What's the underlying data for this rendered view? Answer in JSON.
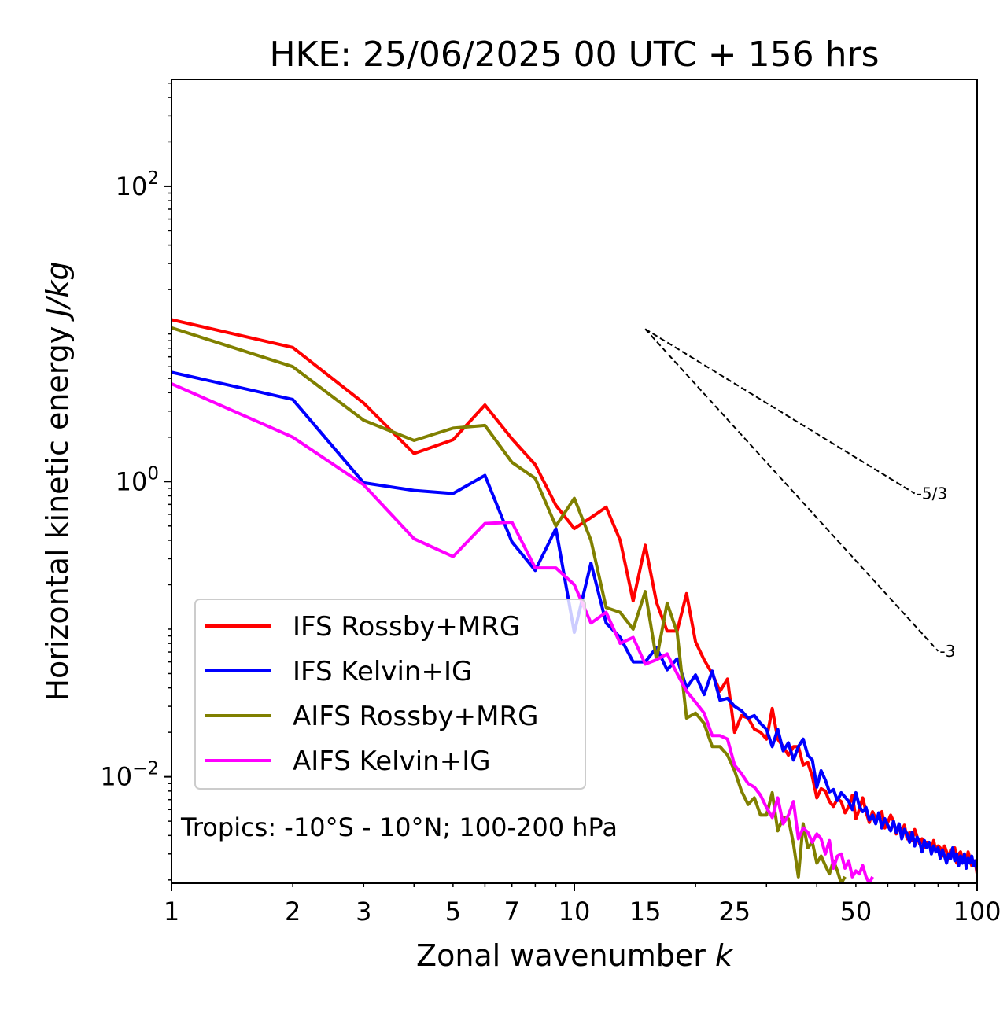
{
  "chart_data": {
    "type": "line",
    "title": "HKE: 25/06/2025 00 UTC + 156 hrs",
    "xlabel": "Zonal wavenumber",
    "xlabel_italic": "k",
    "ylabel": "Horizontal kinetic energy",
    "ylabel_italic": "J/kg",
    "xscale": "log",
    "yscale": "log",
    "xlim": [
      1,
      100
    ],
    "ylim": [
      0.0019,
      530
    ],
    "x_ticks": [
      {
        "value": 1,
        "label": "1"
      },
      {
        "value": 2,
        "label": "2"
      },
      {
        "value": 3,
        "label": "3"
      },
      {
        "value": 5,
        "label": "5"
      },
      {
        "value": 7,
        "label": "7"
      },
      {
        "value": 10,
        "label": "10"
      },
      {
        "value": 15,
        "label": "15"
      },
      {
        "value": 25,
        "label": "25"
      },
      {
        "value": 50,
        "label": "50"
      },
      {
        "value": 100,
        "label": "100"
      }
    ],
    "y_ticks": [
      {
        "value": 100,
        "base": "10",
        "exp": "2"
      },
      {
        "value": 1,
        "base": "10",
        "exp": "0"
      },
      {
        "value": 0.01,
        "base": "10",
        "exp": "−2"
      }
    ],
    "grid": false,
    "legend_position": "lower-left",
    "annotation": "Tropics: -10°S - 10°N; 100-200 hPa",
    "reference_lines": [
      {
        "label": "-5/3",
        "x": [
          15,
          70
        ],
        "y": [
          10.8,
          0.83
        ]
      },
      {
        "label": "-3",
        "x": [
          15,
          80
        ],
        "y": [
          10.8,
          0.071
        ]
      }
    ],
    "series": [
      {
        "name": "IFS Rossby+MRG",
        "color": "#ff0000",
        "points": [
          [
            1,
            12.5
          ],
          [
            2,
            8.1
          ],
          [
            3,
            3.4
          ],
          [
            4,
            1.55
          ],
          [
            5,
            1.92
          ],
          [
            6,
            3.3
          ],
          [
            7,
            1.95
          ],
          [
            8,
            1.3
          ],
          [
            9,
            0.69
          ],
          [
            10,
            0.48
          ],
          [
            11,
            0.57
          ],
          [
            12,
            0.67
          ],
          [
            13,
            0.4
          ],
          [
            14,
            0.155
          ],
          [
            15,
            0.37
          ],
          [
            16,
            0.152
          ],
          [
            17,
            0.097
          ],
          [
            18,
            0.097
          ],
          [
            19,
            0.174
          ],
          [
            20,
            0.082
          ],
          [
            21,
            0.062
          ],
          [
            22,
            0.05
          ],
          [
            23,
            0.038
          ],
          [
            24,
            0.046
          ],
          [
            25,
            0.02
          ],
          [
            26,
            0.026
          ],
          [
            27,
            0.025
          ],
          [
            28,
            0.021
          ],
          [
            29,
            0.02
          ],
          [
            30,
            0.018
          ],
          [
            31,
            0.029
          ],
          [
            32,
            0.018
          ],
          [
            33,
            0.016
          ],
          [
            34,
            0.014
          ],
          [
            35,
            0.016
          ],
          [
            36,
            0.016
          ],
          [
            37,
            0.012
          ],
          [
            38,
            0.0125
          ],
          [
            39,
            0.01
          ],
          [
            40,
            0.0072
          ],
          [
            41,
            0.0083
          ],
          [
            42,
            0.008
          ],
          [
            43,
            0.0068
          ],
          [
            44,
            0.0063
          ],
          [
            45,
            0.0071
          ],
          [
            46,
            0.0068
          ],
          [
            47,
            0.0057
          ],
          [
            48,
            0.0063
          ],
          [
            49,
            0.0075
          ],
          [
            50,
            0.0052
          ],
          [
            51,
            0.006
          ],
          [
            52,
            0.0072
          ],
          [
            53,
            0.0058
          ],
          [
            54,
            0.0049
          ],
          [
            55,
            0.0058
          ],
          [
            56,
            0.0052
          ],
          [
            57,
            0.0055
          ],
          [
            58,
            0.0058
          ],
          [
            59,
            0.0045
          ],
          [
            60,
            0.0049
          ],
          [
            61,
            0.0055
          ],
          [
            62,
            0.005
          ],
          [
            63,
            0.0041
          ],
          [
            64,
            0.0046
          ],
          [
            65,
            0.0043
          ],
          [
            66,
            0.0047
          ],
          [
            67,
            0.0038
          ],
          [
            68,
            0.0042
          ],
          [
            69,
            0.0037
          ],
          [
            70,
            0.0044
          ],
          [
            71,
            0.0039
          ],
          [
            72,
            0.0035
          ],
          [
            73,
            0.0038
          ],
          [
            74,
            0.0033
          ],
          [
            75,
            0.0036
          ],
          [
            76,
            0.0035
          ],
          [
            77,
            0.0032
          ],
          [
            78,
            0.0037
          ],
          [
            79,
            0.0031
          ],
          [
            80,
            0.0034
          ],
          [
            81,
            0.0033
          ],
          [
            82,
            0.0029
          ],
          [
            83,
            0.0034
          ],
          [
            84,
            0.0031
          ],
          [
            85,
            0.0028
          ],
          [
            86,
            0.0032
          ],
          [
            87,
            0.0029
          ],
          [
            88,
            0.0033
          ],
          [
            89,
            0.0026
          ],
          [
            90,
            0.003
          ],
          [
            91,
            0.0031
          ],
          [
            92,
            0.0027
          ],
          [
            93,
            0.0029
          ],
          [
            94,
            0.0026
          ],
          [
            95,
            0.0031
          ],
          [
            96,
            0.0028
          ],
          [
            97,
            0.0025
          ],
          [
            98,
            0.0027
          ],
          [
            99,
            0.0026
          ],
          [
            100,
            0.0022
          ]
        ]
      },
      {
        "name": "IFS Kelvin+IG",
        "color": "#0000ff",
        "points": [
          [
            1,
            5.5
          ],
          [
            2,
            3.6
          ],
          [
            3,
            0.98
          ],
          [
            4,
            0.87
          ],
          [
            5,
            0.83
          ],
          [
            6,
            1.1
          ],
          [
            7,
            0.39
          ],
          [
            8,
            0.25
          ],
          [
            9,
            0.48
          ],
          [
            10,
            0.095
          ],
          [
            11,
            0.28
          ],
          [
            12,
            0.11
          ],
          [
            13,
            0.088
          ],
          [
            14,
            0.06
          ],
          [
            15,
            0.06
          ],
          [
            16,
            0.075
          ],
          [
            17,
            0.053
          ],
          [
            18,
            0.063
          ],
          [
            19,
            0.04
          ],
          [
            20,
            0.049
          ],
          [
            21,
            0.036
          ],
          [
            22,
            0.052
          ],
          [
            23,
            0.033
          ],
          [
            24,
            0.034
          ],
          [
            25,
            0.03
          ],
          [
            26,
            0.028
          ],
          [
            27,
            0.025
          ],
          [
            28,
            0.026
          ],
          [
            29,
            0.023
          ],
          [
            30,
            0.021
          ],
          [
            31,
            0.016
          ],
          [
            32,
            0.021
          ],
          [
            33,
            0.015
          ],
          [
            34,
            0.017
          ],
          [
            35,
            0.013
          ],
          [
            36,
            0.016
          ],
          [
            37,
            0.018
          ],
          [
            38,
            0.014
          ],
          [
            39,
            0.013
          ],
          [
            40,
            0.0085
          ],
          [
            41,
            0.011
          ],
          [
            42,
            0.0095
          ],
          [
            43,
            0.0079
          ],
          [
            44,
            0.0082
          ],
          [
            45,
            0.0069
          ],
          [
            46,
            0.0078
          ],
          [
            47,
            0.0073
          ],
          [
            48,
            0.0068
          ],
          [
            49,
            0.006
          ],
          [
            50,
            0.0078
          ],
          [
            51,
            0.0063
          ],
          [
            52,
            0.0058
          ],
          [
            53,
            0.0062
          ],
          [
            54,
            0.0051
          ],
          [
            55,
            0.0055
          ],
          [
            56,
            0.0048
          ],
          [
            57,
            0.0057
          ],
          [
            58,
            0.0045
          ],
          [
            59,
            0.0052
          ],
          [
            60,
            0.0047
          ],
          [
            61,
            0.0043
          ],
          [
            62,
            0.005
          ],
          [
            63,
            0.0042
          ],
          [
            64,
            0.0048
          ],
          [
            65,
            0.0038
          ],
          [
            66,
            0.0044
          ],
          [
            67,
            0.0041
          ],
          [
            68,
            0.0036
          ],
          [
            69,
            0.0042
          ],
          [
            70,
            0.0034
          ],
          [
            71,
            0.0039
          ],
          [
            72,
            0.0036
          ],
          [
            73,
            0.0031
          ],
          [
            74,
            0.0037
          ],
          [
            75,
            0.0033
          ],
          [
            76,
            0.0036
          ],
          [
            77,
            0.003
          ],
          [
            78,
            0.0034
          ],
          [
            79,
            0.0031
          ],
          [
            80,
            0.0033
          ],
          [
            81,
            0.0028
          ],
          [
            82,
            0.0032
          ],
          [
            83,
            0.0029
          ],
          [
            84,
            0.0026
          ],
          [
            85,
            0.003
          ],
          [
            86,
            0.0028
          ],
          [
            87,
            0.0033
          ],
          [
            88,
            0.0027
          ],
          [
            89,
            0.003
          ],
          [
            90,
            0.0025
          ],
          [
            91,
            0.0029
          ],
          [
            92,
            0.0026
          ],
          [
            93,
            0.003
          ],
          [
            94,
            0.0024
          ],
          [
            95,
            0.0028
          ],
          [
            96,
            0.0026
          ],
          [
            97,
            0.0029
          ],
          [
            98,
            0.0025
          ],
          [
            99,
            0.0027
          ],
          [
            100,
            0.0023
          ]
        ]
      },
      {
        "name": "AIFS Rossby+MRG",
        "color": "#808000",
        "points": [
          [
            1,
            11
          ],
          [
            2,
            6
          ],
          [
            3,
            2.6
          ],
          [
            4,
            1.9
          ],
          [
            5,
            2.3
          ],
          [
            6,
            2.4
          ],
          [
            7,
            1.35
          ],
          [
            8,
            1.05
          ],
          [
            9,
            0.5
          ],
          [
            10,
            0.77
          ],
          [
            11,
            0.4
          ],
          [
            12,
            0.14
          ],
          [
            13,
            0.13
          ],
          [
            14,
            0.1
          ],
          [
            15,
            0.18
          ],
          [
            16,
            0.062
          ],
          [
            17,
            0.15
          ],
          [
            18,
            0.095
          ],
          [
            19,
            0.025
          ],
          [
            20,
            0.027
          ],
          [
            21,
            0.023
          ],
          [
            22,
            0.016
          ],
          [
            23,
            0.016
          ],
          [
            24,
            0.014
          ],
          [
            25,
            0.011
          ],
          [
            26,
            0.008
          ],
          [
            27,
            0.0065
          ],
          [
            28,
            0.0072
          ],
          [
            29,
            0.0055
          ],
          [
            30,
            0.0055
          ],
          [
            31,
            0.0078
          ],
          [
            32,
            0.0043
          ],
          [
            33,
            0.0053
          ],
          [
            34,
            0.0052
          ],
          [
            35,
            0.0035
          ],
          [
            36,
            0.0021
          ],
          [
            37,
            0.0048
          ],
          [
            38,
            0.0033
          ],
          [
            39,
            0.0036
          ],
          [
            40,
            0.0026
          ],
          [
            41,
            0.0029
          ],
          [
            42,
            0.0025
          ],
          [
            43,
            0.0022
          ],
          [
            44,
            0.0027
          ],
          [
            45,
            0.0023
          ],
          [
            46,
            0.0019
          ],
          [
            47,
            0.0021
          ]
        ]
      },
      {
        "name": "AIFS Kelvin+IG",
        "color": "#ff00ff",
        "points": [
          [
            1,
            4.6
          ],
          [
            2,
            2
          ],
          [
            3,
            0.95
          ],
          [
            4,
            0.41
          ],
          [
            5,
            0.31
          ],
          [
            6,
            0.52
          ],
          [
            7,
            0.53
          ],
          [
            8,
            0.26
          ],
          [
            9,
            0.26
          ],
          [
            10,
            0.2
          ],
          [
            11,
            0.11
          ],
          [
            12,
            0.13
          ],
          [
            13,
            0.08
          ],
          [
            14,
            0.088
          ],
          [
            15,
            0.058
          ],
          [
            16,
            0.062
          ],
          [
            17,
            0.068
          ],
          [
            18,
            0.05
          ],
          [
            19,
            0.038
          ],
          [
            20,
            0.032
          ],
          [
            21,
            0.027
          ],
          [
            22,
            0.019
          ],
          [
            23,
            0.019
          ],
          [
            24,
            0.018
          ],
          [
            25,
            0.012
          ],
          [
            26,
            0.0105
          ],
          [
            27,
            0.009
          ],
          [
            28,
            0.0085
          ],
          [
            29,
            0.0075
          ],
          [
            30,
            0.0062
          ],
          [
            31,
            0.0053
          ],
          [
            32,
            0.0072
          ],
          [
            33,
            0.0048
          ],
          [
            34,
            0.0055
          ],
          [
            35,
            0.0068
          ],
          [
            36,
            0.0038
          ],
          [
            37,
            0.0045
          ],
          [
            38,
            0.0042
          ],
          [
            39,
            0.0036
          ],
          [
            40,
            0.0041
          ],
          [
            41,
            0.0038
          ],
          [
            42,
            0.003
          ],
          [
            43,
            0.0037
          ],
          [
            44,
            0.0024
          ],
          [
            45,
            0.0029
          ],
          [
            46,
            0.003
          ],
          [
            47,
            0.0024
          ],
          [
            48,
            0.0027
          ],
          [
            49,
            0.0021
          ],
          [
            50,
            0.0023
          ],
          [
            51,
            0.0022
          ],
          [
            52,
            0.0025
          ],
          [
            53,
            0.0021
          ],
          [
            54,
            0.0019
          ],
          [
            55,
            0.0021
          ]
        ]
      }
    ]
  }
}
